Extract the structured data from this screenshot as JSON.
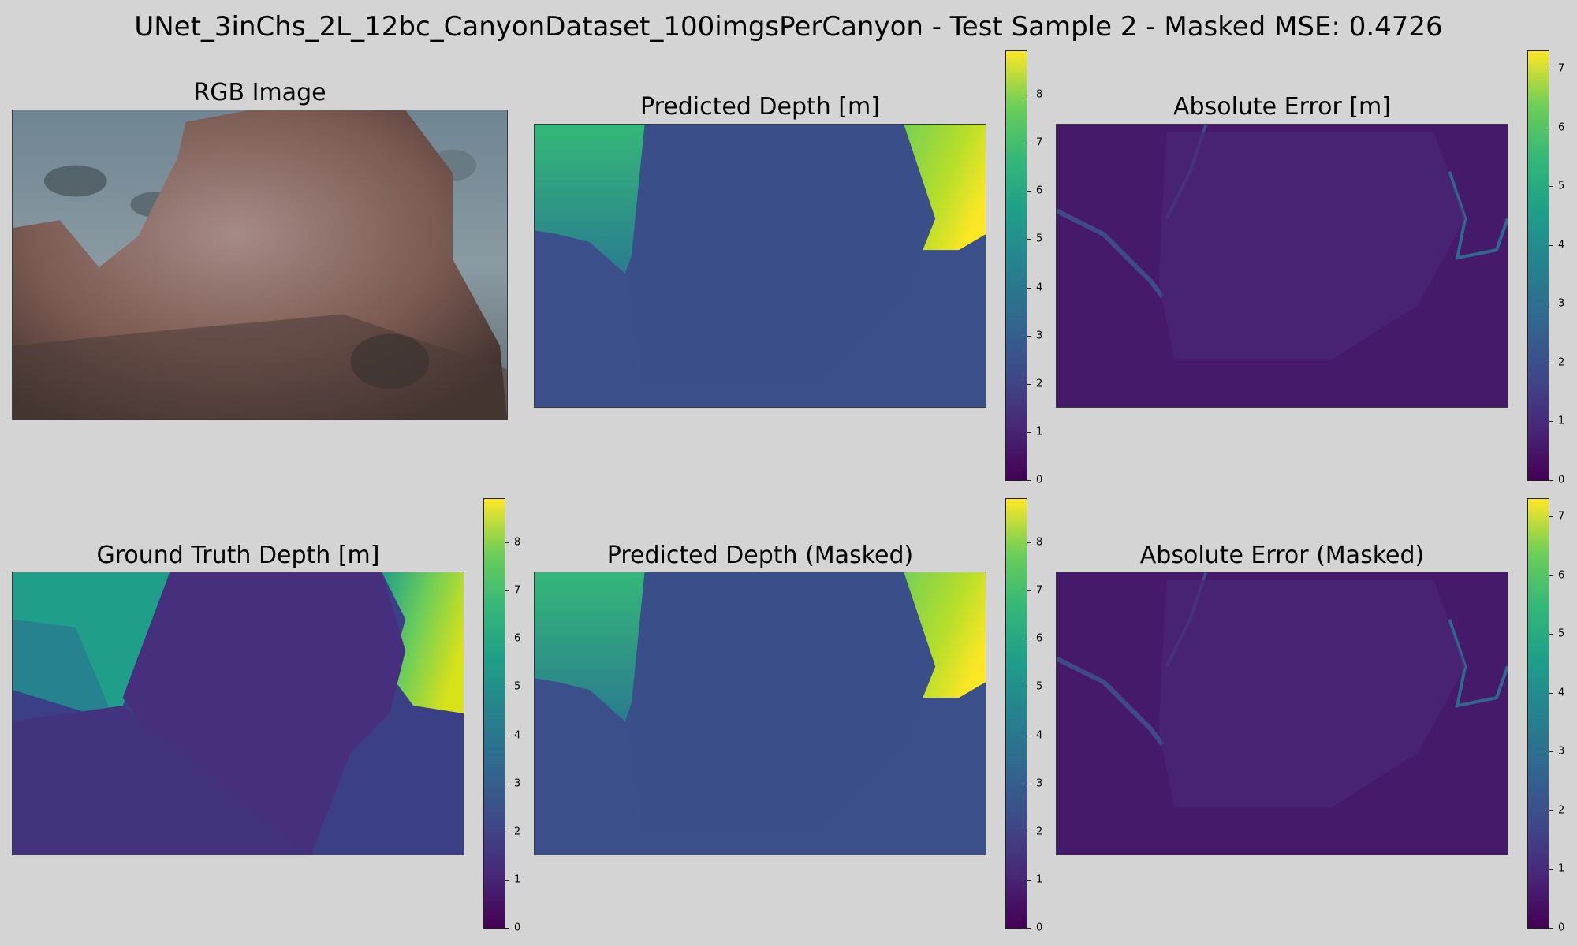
{
  "figure": {
    "title": "UNet_3inChs_2L_12bc_CanyonDataset_100imgsPerCanyon - Test Sample 2 - Masked MSE: 0.4726"
  },
  "chart_data": [
    {
      "type": "image",
      "title": "RGB Image"
    },
    {
      "type": "heatmap",
      "title": "Predicted Depth [m]",
      "colormap": "viridis",
      "colorbar": {
        "min": 0,
        "max": 8.9,
        "ticks": [
          0,
          1,
          2,
          3,
          4,
          5,
          6,
          7,
          8
        ]
      }
    },
    {
      "type": "heatmap",
      "title": "Absolute Error [m]",
      "colormap": "viridis",
      "colorbar": {
        "min": 0,
        "max": 7.3,
        "ticks": [
          0,
          1,
          2,
          3,
          4,
          5,
          6,
          7
        ]
      }
    },
    {
      "type": "heatmap",
      "title": "Ground Truth Depth [m]",
      "colormap": "viridis",
      "colorbar": {
        "min": 0,
        "max": 8.9,
        "ticks": [
          0,
          1,
          2,
          3,
          4,
          5,
          6,
          7,
          8
        ]
      }
    },
    {
      "type": "heatmap",
      "title": "Predicted Depth (Masked)",
      "colormap": "viridis",
      "colorbar": {
        "min": 0,
        "max": 8.9,
        "ticks": [
          0,
          1,
          2,
          3,
          4,
          5,
          6,
          7,
          8
        ]
      }
    },
    {
      "type": "heatmap",
      "title": "Absolute Error (Masked)",
      "colormap": "viridis",
      "colorbar": {
        "min": 0,
        "max": 7.3,
        "ticks": [
          0,
          1,
          2,
          3,
          4,
          5,
          6,
          7
        ]
      }
    }
  ]
}
